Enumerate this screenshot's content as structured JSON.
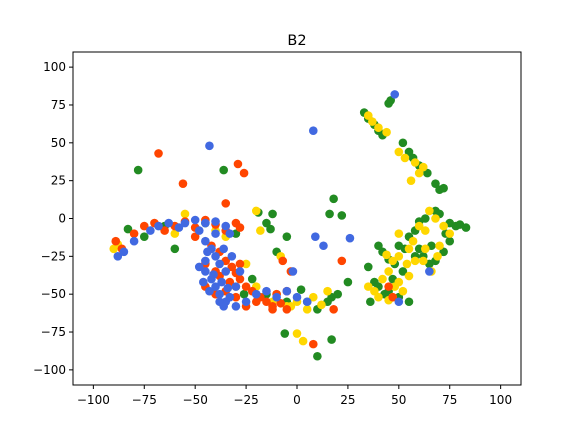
{
  "chart_data": {
    "type": "scatter",
    "title": "B2",
    "xlabel": "",
    "ylabel": "",
    "xlim": [
      -110,
      110
    ],
    "ylim": [
      -110,
      110
    ],
    "x_ticks": [
      -100,
      -75,
      -50,
      -25,
      0,
      25,
      50,
      75,
      100
    ],
    "y_ticks": [
      -100,
      -75,
      -50,
      -25,
      0,
      25,
      50,
      75,
      100
    ],
    "grid": false,
    "legend": "none",
    "colors": {
      "green": "#228b22",
      "gold": "#ffd700",
      "orange": "#ff4500",
      "blue": "#4169e1"
    },
    "series": [
      {
        "color": "#228b22",
        "points": [
          [
            -78,
            32
          ],
          [
            -36,
            32
          ],
          [
            -60,
            -20
          ],
          [
            -75,
            -12
          ],
          [
            -83,
            -7
          ],
          [
            -65,
            -5
          ],
          [
            -45,
            -3
          ],
          [
            -30,
            -10
          ],
          [
            -15,
            -3
          ],
          [
            -12,
            3
          ],
          [
            -19,
            4
          ],
          [
            -13,
            -7
          ],
          [
            -10,
            -22
          ],
          [
            -5,
            -12
          ],
          [
            -22,
            -40
          ],
          [
            -26,
            -50
          ],
          [
            -15,
            -50
          ],
          [
            -5,
            -55
          ],
          [
            2,
            -47
          ],
          [
            5,
            -55
          ],
          [
            10,
            -60
          ],
          [
            15,
            -55
          ],
          [
            17,
            -52
          ],
          [
            -6,
            -76
          ],
          [
            10,
            -91
          ],
          [
            17,
            -80
          ],
          [
            20,
            -50
          ],
          [
            25,
            -42
          ],
          [
            18,
            13
          ],
          [
            16,
            3
          ],
          [
            22,
            2
          ],
          [
            33,
            70
          ],
          [
            35,
            66
          ],
          [
            38,
            62
          ],
          [
            40,
            58
          ],
          [
            42,
            55
          ],
          [
            45,
            76
          ],
          [
            46,
            78
          ],
          [
            52,
            50
          ],
          [
            55,
            44
          ],
          [
            57,
            40
          ],
          [
            60,
            35
          ],
          [
            64,
            30
          ],
          [
            68,
            23
          ],
          [
            70,
            19
          ],
          [
            72,
            20
          ],
          [
            68,
            5
          ],
          [
            70,
            3
          ],
          [
            75,
            -3
          ],
          [
            78,
            -5
          ],
          [
            80,
            -4
          ],
          [
            83,
            -6
          ],
          [
            60,
            -2
          ],
          [
            63,
            0
          ],
          [
            58,
            -8
          ],
          [
            55,
            -12
          ],
          [
            50,
            -18
          ],
          [
            53,
            -20
          ],
          [
            40,
            -18
          ],
          [
            42,
            -22
          ],
          [
            45,
            -27
          ],
          [
            48,
            -30
          ],
          [
            35,
            -32
          ],
          [
            38,
            -42
          ],
          [
            40,
            -45
          ],
          [
            45,
            -48
          ],
          [
            50,
            -52
          ],
          [
            55,
            -55
          ],
          [
            60,
            -20
          ],
          [
            62,
            -25
          ],
          [
            65,
            -30
          ],
          [
            68,
            -28
          ],
          [
            72,
            -22
          ],
          [
            75,
            -15
          ],
          [
            73,
            -10
          ],
          [
            66,
            -18
          ],
          [
            58,
            -25
          ],
          [
            52,
            -35
          ],
          [
            47,
            -40
          ],
          [
            43,
            -50
          ],
          [
            36,
            -55
          ]
        ]
      },
      {
        "color": "#ffd700",
        "points": [
          [
            -88,
            -17
          ],
          [
            -90,
            -20
          ],
          [
            -55,
            3
          ],
          [
            -60,
            -10
          ],
          [
            -40,
            -8
          ],
          [
            -35,
            -12
          ],
          [
            -20,
            5
          ],
          [
            -18,
            -8
          ],
          [
            -25,
            -30
          ],
          [
            -30,
            -45
          ],
          [
            -20,
            -45
          ],
          [
            -8,
            -25
          ],
          [
            -10,
            -50
          ],
          [
            -5,
            -58
          ],
          [
            0,
            -55
          ],
          [
            5,
            -60
          ],
          [
            8,
            -52
          ],
          [
            12,
            -57
          ],
          [
            15,
            -48
          ],
          [
            0,
            -76
          ],
          [
            3,
            -81
          ],
          [
            -3,
            -58
          ],
          [
            -12,
            -55
          ],
          [
            35,
            68
          ],
          [
            37,
            64
          ],
          [
            40,
            60
          ],
          [
            44,
            57
          ],
          [
            50,
            44
          ],
          [
            53,
            40
          ],
          [
            58,
            37
          ],
          [
            62,
            34
          ],
          [
            60,
            30
          ],
          [
            56,
            25
          ],
          [
            65,
            5
          ],
          [
            68,
            0
          ],
          [
            72,
            -5
          ],
          [
            75,
            -10
          ],
          [
            60,
            -5
          ],
          [
            63,
            -8
          ],
          [
            57,
            -15
          ],
          [
            55,
            -20
          ],
          [
            50,
            -25
          ],
          [
            47,
            -28
          ],
          [
            45,
            -35
          ],
          [
            42,
            -40
          ],
          [
            48,
            -45
          ],
          [
            52,
            -48
          ],
          [
            38,
            -48
          ],
          [
            40,
            -52
          ],
          [
            45,
            -54
          ],
          [
            35,
            -45
          ],
          [
            62,
            -28
          ],
          [
            66,
            -35
          ],
          [
            69,
            -25
          ],
          [
            70,
            -18
          ],
          [
            63,
            -20
          ],
          [
            58,
            -28
          ],
          [
            55,
            -38
          ],
          [
            50,
            -42
          ],
          [
            44,
            -24
          ],
          [
            50,
            -10
          ],
          [
            54,
            -30
          ],
          [
            47,
            -52
          ]
        ]
      },
      {
        "color": "#ff4500",
        "points": [
          [
            -68,
            43
          ],
          [
            -56,
            23
          ],
          [
            -29,
            36
          ],
          [
            -26,
            30
          ],
          [
            -35,
            10
          ],
          [
            -89,
            -15
          ],
          [
            -86,
            -20
          ],
          [
            -80,
            -10
          ],
          [
            -75,
            -5
          ],
          [
            -70,
            -3
          ],
          [
            -65,
            -8
          ],
          [
            -60,
            -5
          ],
          [
            -55,
            -2
          ],
          [
            -50,
            -6
          ],
          [
            -45,
            -1
          ],
          [
            -40,
            -4
          ],
          [
            -35,
            -8
          ],
          [
            -30,
            -3
          ],
          [
            -28,
            -6
          ],
          [
            -50,
            -12
          ],
          [
            -42,
            -18
          ],
          [
            -38,
            -22
          ],
          [
            -35,
            -28
          ],
          [
            -32,
            -32
          ],
          [
            -30,
            -36
          ],
          [
            -28,
            -40
          ],
          [
            -25,
            -45
          ],
          [
            -22,
            -48
          ],
          [
            -18,
            -52
          ],
          [
            -15,
            -55
          ],
          [
            -12,
            -58
          ],
          [
            -8,
            -56
          ],
          [
            -5,
            -60
          ],
          [
            -45,
            -45
          ],
          [
            -40,
            -50
          ],
          [
            -35,
            -48
          ],
          [
            -30,
            -52
          ],
          [
            -25,
            -58
          ],
          [
            -20,
            -55
          ],
          [
            -10,
            -50
          ],
          [
            -5,
            -48
          ],
          [
            -3,
            -35
          ],
          [
            -7,
            -28
          ],
          [
            -12,
            -60
          ],
          [
            22,
            -28
          ],
          [
            8,
            -83
          ],
          [
            18,
            -60
          ],
          [
            47,
            -52
          ],
          [
            45,
            -45
          ],
          [
            -38,
            -38
          ],
          [
            -33,
            -42
          ],
          [
            -28,
            -30
          ],
          [
            -45,
            -30
          ],
          [
            -40,
            -35
          ]
        ]
      },
      {
        "color": "#4169e1",
        "points": [
          [
            -43,
            48
          ],
          [
            8,
            58
          ],
          [
            48,
            82
          ],
          [
            -88,
            -25
          ],
          [
            -85,
            -22
          ],
          [
            -80,
            -15
          ],
          [
            -72,
            -8
          ],
          [
            -68,
            -5
          ],
          [
            -63,
            -3
          ],
          [
            -58,
            -6
          ],
          [
            -55,
            -3
          ],
          [
            -50,
            -1
          ],
          [
            -45,
            -3
          ],
          [
            -40,
            -2
          ],
          [
            -35,
            -5
          ],
          [
            -33,
            -10
          ],
          [
            -48,
            -8
          ],
          [
            -45,
            -15
          ],
          [
            -42,
            -20
          ],
          [
            -40,
            -25
          ],
          [
            -38,
            -30
          ],
          [
            -45,
            -35
          ],
          [
            -42,
            -40
          ],
          [
            -40,
            -45
          ],
          [
            -38,
            -50
          ],
          [
            -35,
            -55
          ],
          [
            -30,
            -58
          ],
          [
            -25,
            -55
          ],
          [
            -20,
            -50
          ],
          [
            -15,
            -48
          ],
          [
            -10,
            -52
          ],
          [
            -5,
            -48
          ],
          [
            0,
            -52
          ],
          [
            -2,
            -35
          ],
          [
            -45,
            -28
          ],
          [
            -48,
            -32
          ],
          [
            -46,
            -42
          ],
          [
            -43,
            -48
          ],
          [
            -38,
            -55
          ],
          [
            -36,
            -58
          ],
          [
            -33,
            -52
          ],
          [
            -30,
            -45
          ],
          [
            -28,
            -35
          ],
          [
            -32,
            -25
          ],
          [
            -36,
            -20
          ],
          [
            -40,
            -10
          ],
          [
            -44,
            -22
          ],
          [
            -37,
            -42
          ],
          [
            9,
            -12
          ],
          [
            13,
            -18
          ],
          [
            26,
            -13
          ],
          [
            5,
            -55
          ],
          [
            50,
            -55
          ],
          [
            65,
            -35
          ],
          [
            -35,
            -35
          ],
          [
            -41,
            -37
          ],
          [
            -34,
            -46
          ]
        ]
      }
    ]
  }
}
